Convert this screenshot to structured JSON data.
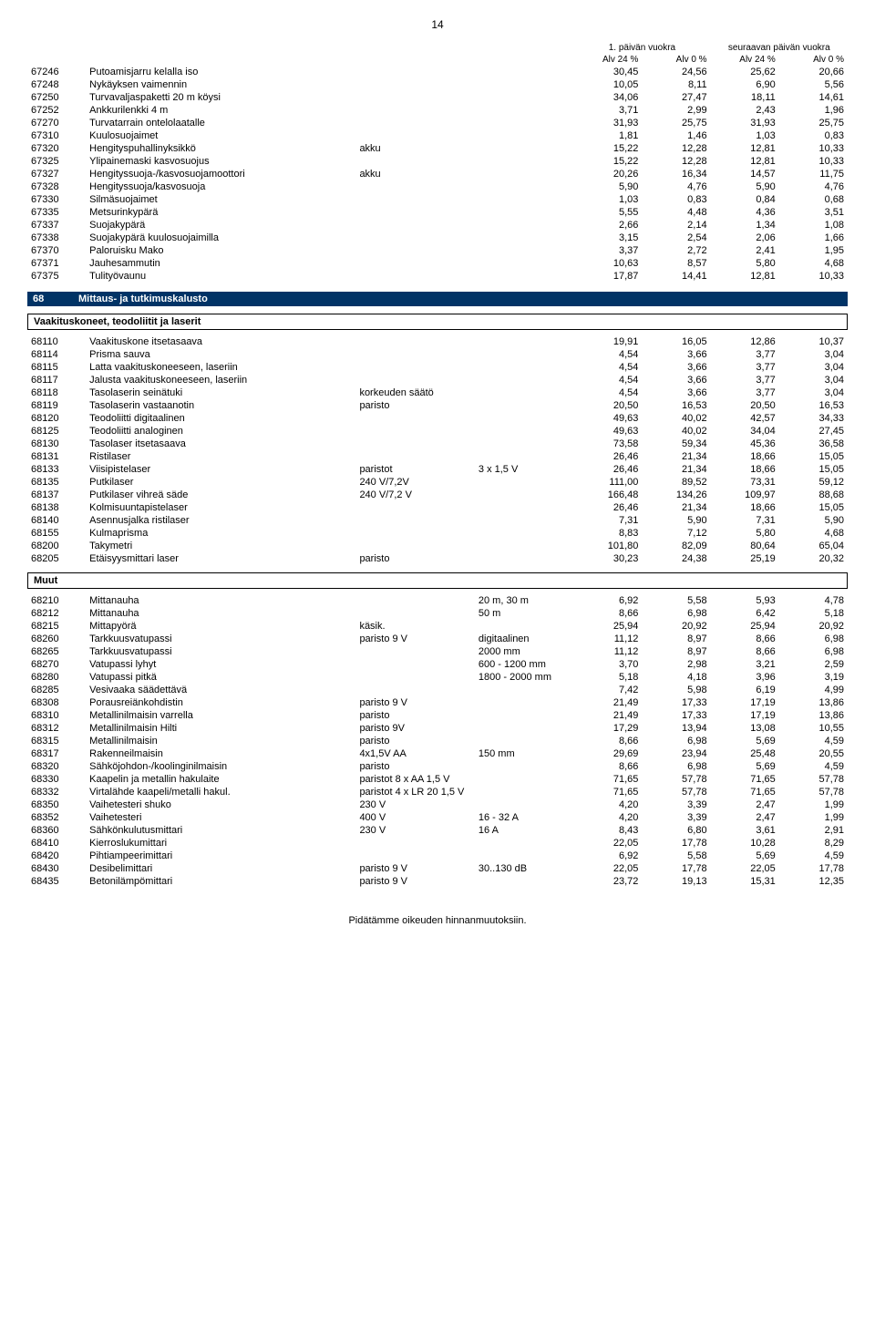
{
  "page_number": "14",
  "top_header": {
    "left": "1. päivän vuokra",
    "right": "seuraavan päivän vuokra",
    "cols": [
      "Alv 24 %",
      "Alv 0 %",
      "Alv 24 %",
      "Alv 0 %"
    ]
  },
  "section1_rows": [
    {
      "code": "67246",
      "desc": "Putoamisjarru kelalla iso",
      "s1": "",
      "s2": "",
      "v": [
        "30,45",
        "24,56",
        "25,62",
        "20,66"
      ]
    },
    {
      "code": "67248",
      "desc": "Nykäyksen vaimennin",
      "s1": "",
      "s2": "",
      "v": [
        "10,05",
        "8,11",
        "6,90",
        "5,56"
      ]
    },
    {
      "code": "67250",
      "desc": "Turvavaljaspaketti 20 m köysi",
      "s1": "",
      "s2": "",
      "v": [
        "34,06",
        "27,47",
        "18,11",
        "14,61"
      ]
    },
    {
      "code": "67252",
      "desc": "Ankkurilenkki 4 m",
      "s1": "",
      "s2": "",
      "v": [
        "3,71",
        "2,99",
        "2,43",
        "1,96"
      ]
    },
    {
      "code": "67270",
      "desc": "Turvatarrain ontelolaatalle",
      "s1": "",
      "s2": "",
      "v": [
        "31,93",
        "25,75",
        "31,93",
        "25,75"
      ]
    },
    {
      "code": "67310",
      "desc": "Kuulosuojaimet",
      "s1": "",
      "s2": "",
      "v": [
        "1,81",
        "1,46",
        "1,03",
        "0,83"
      ]
    },
    {
      "code": "67320",
      "desc": "Hengityspuhallinyksikkö",
      "s1": "akku",
      "s2": "",
      "v": [
        "15,22",
        "12,28",
        "12,81",
        "10,33"
      ]
    },
    {
      "code": "67325",
      "desc": "Ylipainemaski kasvosuojus",
      "s1": "",
      "s2": "",
      "v": [
        "15,22",
        "12,28",
        "12,81",
        "10,33"
      ]
    },
    {
      "code": "67327",
      "desc": "Hengityssuoja-/kasvosuojamoottori",
      "s1": "akku",
      "s2": "",
      "v": [
        "20,26",
        "16,34",
        "14,57",
        "11,75"
      ]
    },
    {
      "code": "67328",
      "desc": "Hengityssuoja/kasvosuoja",
      "s1": "",
      "s2": "",
      "v": [
        "5,90",
        "4,76",
        "5,90",
        "4,76"
      ]
    },
    {
      "code": "67330",
      "desc": "Silmäsuojaimet",
      "s1": "",
      "s2": "",
      "v": [
        "1,03",
        "0,83",
        "0,84",
        "0,68"
      ]
    },
    {
      "code": "67335",
      "desc": "Metsurinkypärä",
      "s1": "",
      "s2": "",
      "v": [
        "5,55",
        "4,48",
        "4,36",
        "3,51"
      ]
    },
    {
      "code": "67337",
      "desc": "Suojakypärä",
      "s1": "",
      "s2": "",
      "v": [
        "2,66",
        "2,14",
        "1,34",
        "1,08"
      ]
    },
    {
      "code": "67338",
      "desc": "Suojakypärä kuulosuojaimilla",
      "s1": "",
      "s2": "",
      "v": [
        "3,15",
        "2,54",
        "2,06",
        "1,66"
      ]
    },
    {
      "code": "67370",
      "desc": "Paloruisku Mako",
      "s1": "",
      "s2": "",
      "v": [
        "3,37",
        "2,72",
        "2,41",
        "1,95"
      ]
    },
    {
      "code": "67371",
      "desc": "Jauhesammutin",
      "s1": "",
      "s2": "",
      "v": [
        "10,63",
        "8,57",
        "5,80",
        "4,68"
      ]
    },
    {
      "code": "67375",
      "desc": "Tulityövaunu",
      "s1": "",
      "s2": "",
      "v": [
        "17,87",
        "14,41",
        "12,81",
        "10,33"
      ]
    }
  ],
  "section68": {
    "code": "68",
    "title": "Mittaus- ja tutkimuskalusto"
  },
  "sub1_title": "Vaakituskoneet, teodoliitit ja laserit",
  "sub1_rows": [
    {
      "code": "68110",
      "desc": "Vaakituskone itsetasaava",
      "s1": "",
      "s2": "",
      "v": [
        "19,91",
        "16,05",
        "12,86",
        "10,37"
      ]
    },
    {
      "code": "68114",
      "desc": "Prisma sauva",
      "s1": "",
      "s2": "",
      "v": [
        "4,54",
        "3,66",
        "3,77",
        "3,04"
      ]
    },
    {
      "code": "68115",
      "desc": "Latta vaakituskoneeseen, laseriin",
      "s1": "",
      "s2": "",
      "v": [
        "4,54",
        "3,66",
        "3,77",
        "3,04"
      ]
    },
    {
      "code": "68117",
      "desc": "Jalusta vaakituskoneeseen, laseriin",
      "s1": "",
      "s2": "",
      "v": [
        "4,54",
        "3,66",
        "3,77",
        "3,04"
      ]
    },
    {
      "code": "68118",
      "desc": "Tasolaserin seinätuki",
      "s1": "korkeuden säätö",
      "s2": "",
      "v": [
        "4,54",
        "3,66",
        "3,77",
        "3,04"
      ]
    },
    {
      "code": "68119",
      "desc": "Tasolaserin vastaanotin",
      "s1": "paristo",
      "s2": "",
      "v": [
        "20,50",
        "16,53",
        "20,50",
        "16,53"
      ]
    },
    {
      "code": "68120",
      "desc": "Teodoliitti digitaalinen",
      "s1": "",
      "s2": "",
      "v": [
        "49,63",
        "40,02",
        "42,57",
        "34,33"
      ]
    },
    {
      "code": "68125",
      "desc": "Teodoliitti analoginen",
      "s1": "",
      "s2": "",
      "v": [
        "49,63",
        "40,02",
        "34,04",
        "27,45"
      ]
    },
    {
      "code": "68130",
      "desc": "Tasolaser itsetasaava",
      "s1": "",
      "s2": "",
      "v": [
        "73,58",
        "59,34",
        "45,36",
        "36,58"
      ]
    },
    {
      "code": "68131",
      "desc": "Ristilaser",
      "s1": "",
      "s2": "",
      "v": [
        "26,46",
        "21,34",
        "18,66",
        "15,05"
      ]
    },
    {
      "code": "68133",
      "desc": "Viisipistelaser",
      "s1": "paristot",
      "s2": "3 x 1,5 V",
      "v": [
        "26,46",
        "21,34",
        "18,66",
        "15,05"
      ]
    },
    {
      "code": "68135",
      "desc": "Putkilaser",
      "s1": "240 V/7,2V",
      "s2": "",
      "v": [
        "111,00",
        "89,52",
        "73,31",
        "59,12"
      ]
    },
    {
      "code": "68137",
      "desc": "Putkilaser vihreä säde",
      "s1": "240 V/7,2 V",
      "s2": "",
      "v": [
        "166,48",
        "134,26",
        "109,97",
        "88,68"
      ]
    },
    {
      "code": "68138",
      "desc": "Kolmisuuntapistelaser",
      "s1": "",
      "s2": "",
      "v": [
        "26,46",
        "21,34",
        "18,66",
        "15,05"
      ]
    },
    {
      "code": "68140",
      "desc": "Asennusjalka ristilaser",
      "s1": "",
      "s2": "",
      "v": [
        "7,31",
        "5,90",
        "7,31",
        "5,90"
      ]
    },
    {
      "code": "68155",
      "desc": "Kulmaprisma",
      "s1": "",
      "s2": "",
      "v": [
        "8,83",
        "7,12",
        "5,80",
        "4,68"
      ]
    },
    {
      "code": "68200",
      "desc": "Takymetri",
      "s1": "",
      "s2": "",
      "v": [
        "101,80",
        "82,09",
        "80,64",
        "65,04"
      ]
    },
    {
      "code": "68205",
      "desc": "Etäisyysmittari laser",
      "s1": "paristo",
      "s2": "",
      "v": [
        "30,23",
        "24,38",
        "25,19",
        "20,32"
      ]
    }
  ],
  "sub2_title": "Muut",
  "sub2_rows": [
    {
      "code": "68210",
      "desc": "Mittanauha",
      "s1": "",
      "s2": "20 m, 30 m",
      "v": [
        "6,92",
        "5,58",
        "5,93",
        "4,78"
      ]
    },
    {
      "code": "68212",
      "desc": "Mittanauha",
      "s1": "",
      "s2": "50 m",
      "v": [
        "8,66",
        "6,98",
        "6,42",
        "5,18"
      ]
    },
    {
      "code": "68215",
      "desc": "Mittapyörä",
      "s1": "käsik.",
      "s2": "",
      "v": [
        "25,94",
        "20,92",
        "25,94",
        "20,92"
      ]
    },
    {
      "code": "68260",
      "desc": "Tarkkuusvatupassi",
      "s1": "paristo 9 V",
      "s2": "digitaalinen",
      "v": [
        "11,12",
        "8,97",
        "8,66",
        "6,98"
      ]
    },
    {
      "code": "68265",
      "desc": "Tarkkuusvatupassi",
      "s1": "",
      "s2": "2000 mm",
      "v": [
        "11,12",
        "8,97",
        "8,66",
        "6,98"
      ]
    },
    {
      "code": "68270",
      "desc": "Vatupassi lyhyt",
      "s1": "",
      "s2": "600 - 1200 mm",
      "v": [
        "3,70",
        "2,98",
        "3,21",
        "2,59"
      ]
    },
    {
      "code": "68280",
      "desc": "Vatupassi pitkä",
      "s1": "",
      "s2": "1800 - 2000 mm",
      "v": [
        "5,18",
        "4,18",
        "3,96",
        "3,19"
      ]
    },
    {
      "code": "68285",
      "desc": "Vesivaaka säädettävä",
      "s1": "",
      "s2": "",
      "v": [
        "7,42",
        "5,98",
        "6,19",
        "4,99"
      ]
    },
    {
      "code": "68308",
      "desc": "Porausreiänkohdistin",
      "s1": "paristo 9 V",
      "s2": "",
      "v": [
        "21,49",
        "17,33",
        "17,19",
        "13,86"
      ]
    },
    {
      "code": "68310",
      "desc": "Metallinilmaisin varrella",
      "s1": "paristo",
      "s2": "",
      "v": [
        "21,49",
        "17,33",
        "17,19",
        "13,86"
      ]
    },
    {
      "code": "68312",
      "desc": "Metallinilmaisin Hilti",
      "s1": "paristo 9V",
      "s2": "",
      "v": [
        "17,29",
        "13,94",
        "13,08",
        "10,55"
      ]
    },
    {
      "code": "68315",
      "desc": "Metallinilmaisin",
      "s1": "paristo",
      "s2": "",
      "v": [
        "8,66",
        "6,98",
        "5,69",
        "4,59"
      ]
    },
    {
      "code": "68317",
      "desc": "Rakenneilmaisin",
      "s1": "4x1,5V AA",
      "s2": "150 mm",
      "v": [
        "29,69",
        "23,94",
        "25,48",
        "20,55"
      ]
    },
    {
      "code": "68320",
      "desc": "Sähköjohdon-/koolinginilmaisin",
      "s1": "paristo",
      "s2": "",
      "v": [
        "8,66",
        "6,98",
        "5,69",
        "4,59"
      ]
    },
    {
      "code": "68330",
      "desc": "Kaapelin ja metallin hakulaite",
      "s1": "paristot 8 x AA 1,5 V",
      "s2": "",
      "v": [
        "71,65",
        "57,78",
        "71,65",
        "57,78"
      ]
    },
    {
      "code": "68332",
      "desc": "Virtalähde kaapeli/metalli hakul.",
      "s1": "paristot 4 x LR 20 1,5 V",
      "s2": "",
      "v": [
        "71,65",
        "57,78",
        "71,65",
        "57,78"
      ]
    },
    {
      "code": "68350",
      "desc": "Vaihetesteri shuko",
      "s1": "230 V",
      "s2": "",
      "v": [
        "4,20",
        "3,39",
        "2,47",
        "1,99"
      ]
    },
    {
      "code": "68352",
      "desc": "Vaihetesteri",
      "s1": "400 V",
      "s2": "16 - 32 A",
      "v": [
        "4,20",
        "3,39",
        "2,47",
        "1,99"
      ]
    },
    {
      "code": "68360",
      "desc": "Sähkönkulutusmittari",
      "s1": "230 V",
      "s2": "16 A",
      "v": [
        "8,43",
        "6,80",
        "3,61",
        "2,91"
      ]
    },
    {
      "code": "68410",
      "desc": "Kierroslukumittari",
      "s1": "",
      "s2": "",
      "v": [
        "22,05",
        "17,78",
        "10,28",
        "8,29"
      ]
    },
    {
      "code": "68420",
      "desc": "Pihtiampeerimittari",
      "s1": "",
      "s2": "",
      "v": [
        "6,92",
        "5,58",
        "5,69",
        "4,59"
      ]
    },
    {
      "code": "68430",
      "desc": "Desibelimittari",
      "s1": "paristo 9 V",
      "s2": "30..130 dB",
      "v": [
        "22,05",
        "17,78",
        "22,05",
        "17,78"
      ]
    },
    {
      "code": "68435",
      "desc": "Betonilämpömittari",
      "s1": "paristo 9 V",
      "s2": "",
      "v": [
        "23,72",
        "19,13",
        "15,31",
        "12,35"
      ]
    }
  ],
  "footer": "Pidätämme oikeuden hinnanmuutoksiin."
}
